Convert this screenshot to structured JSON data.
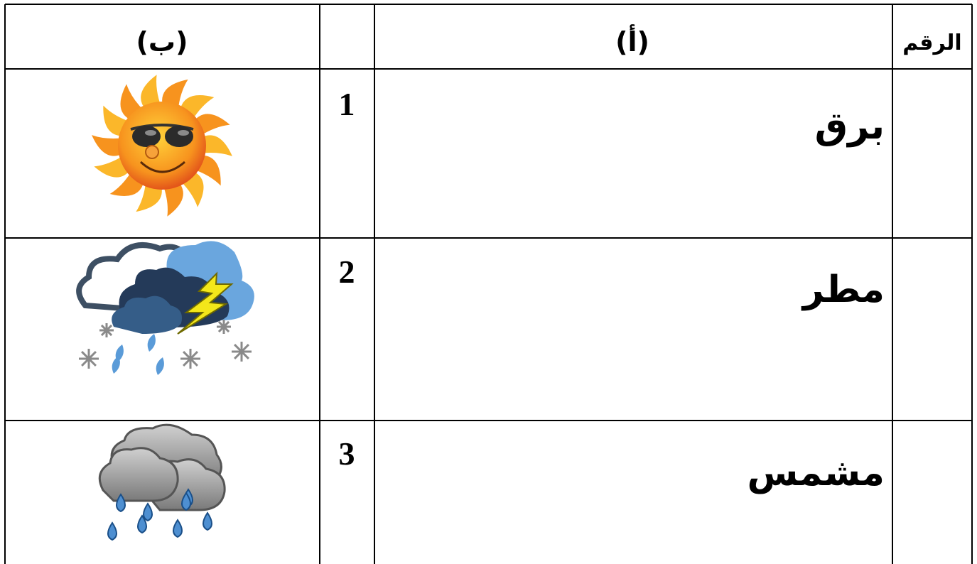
{
  "table": {
    "headers": {
      "b": "(ب)",
      "a": "(أ)",
      "number": "الرقم"
    },
    "rows": [
      {
        "number": 1,
        "word": "برق"
      },
      {
        "number": 2,
        "word": "مطر"
      },
      {
        "number": 3,
        "word": "مشمس"
      }
    ]
  }
}
